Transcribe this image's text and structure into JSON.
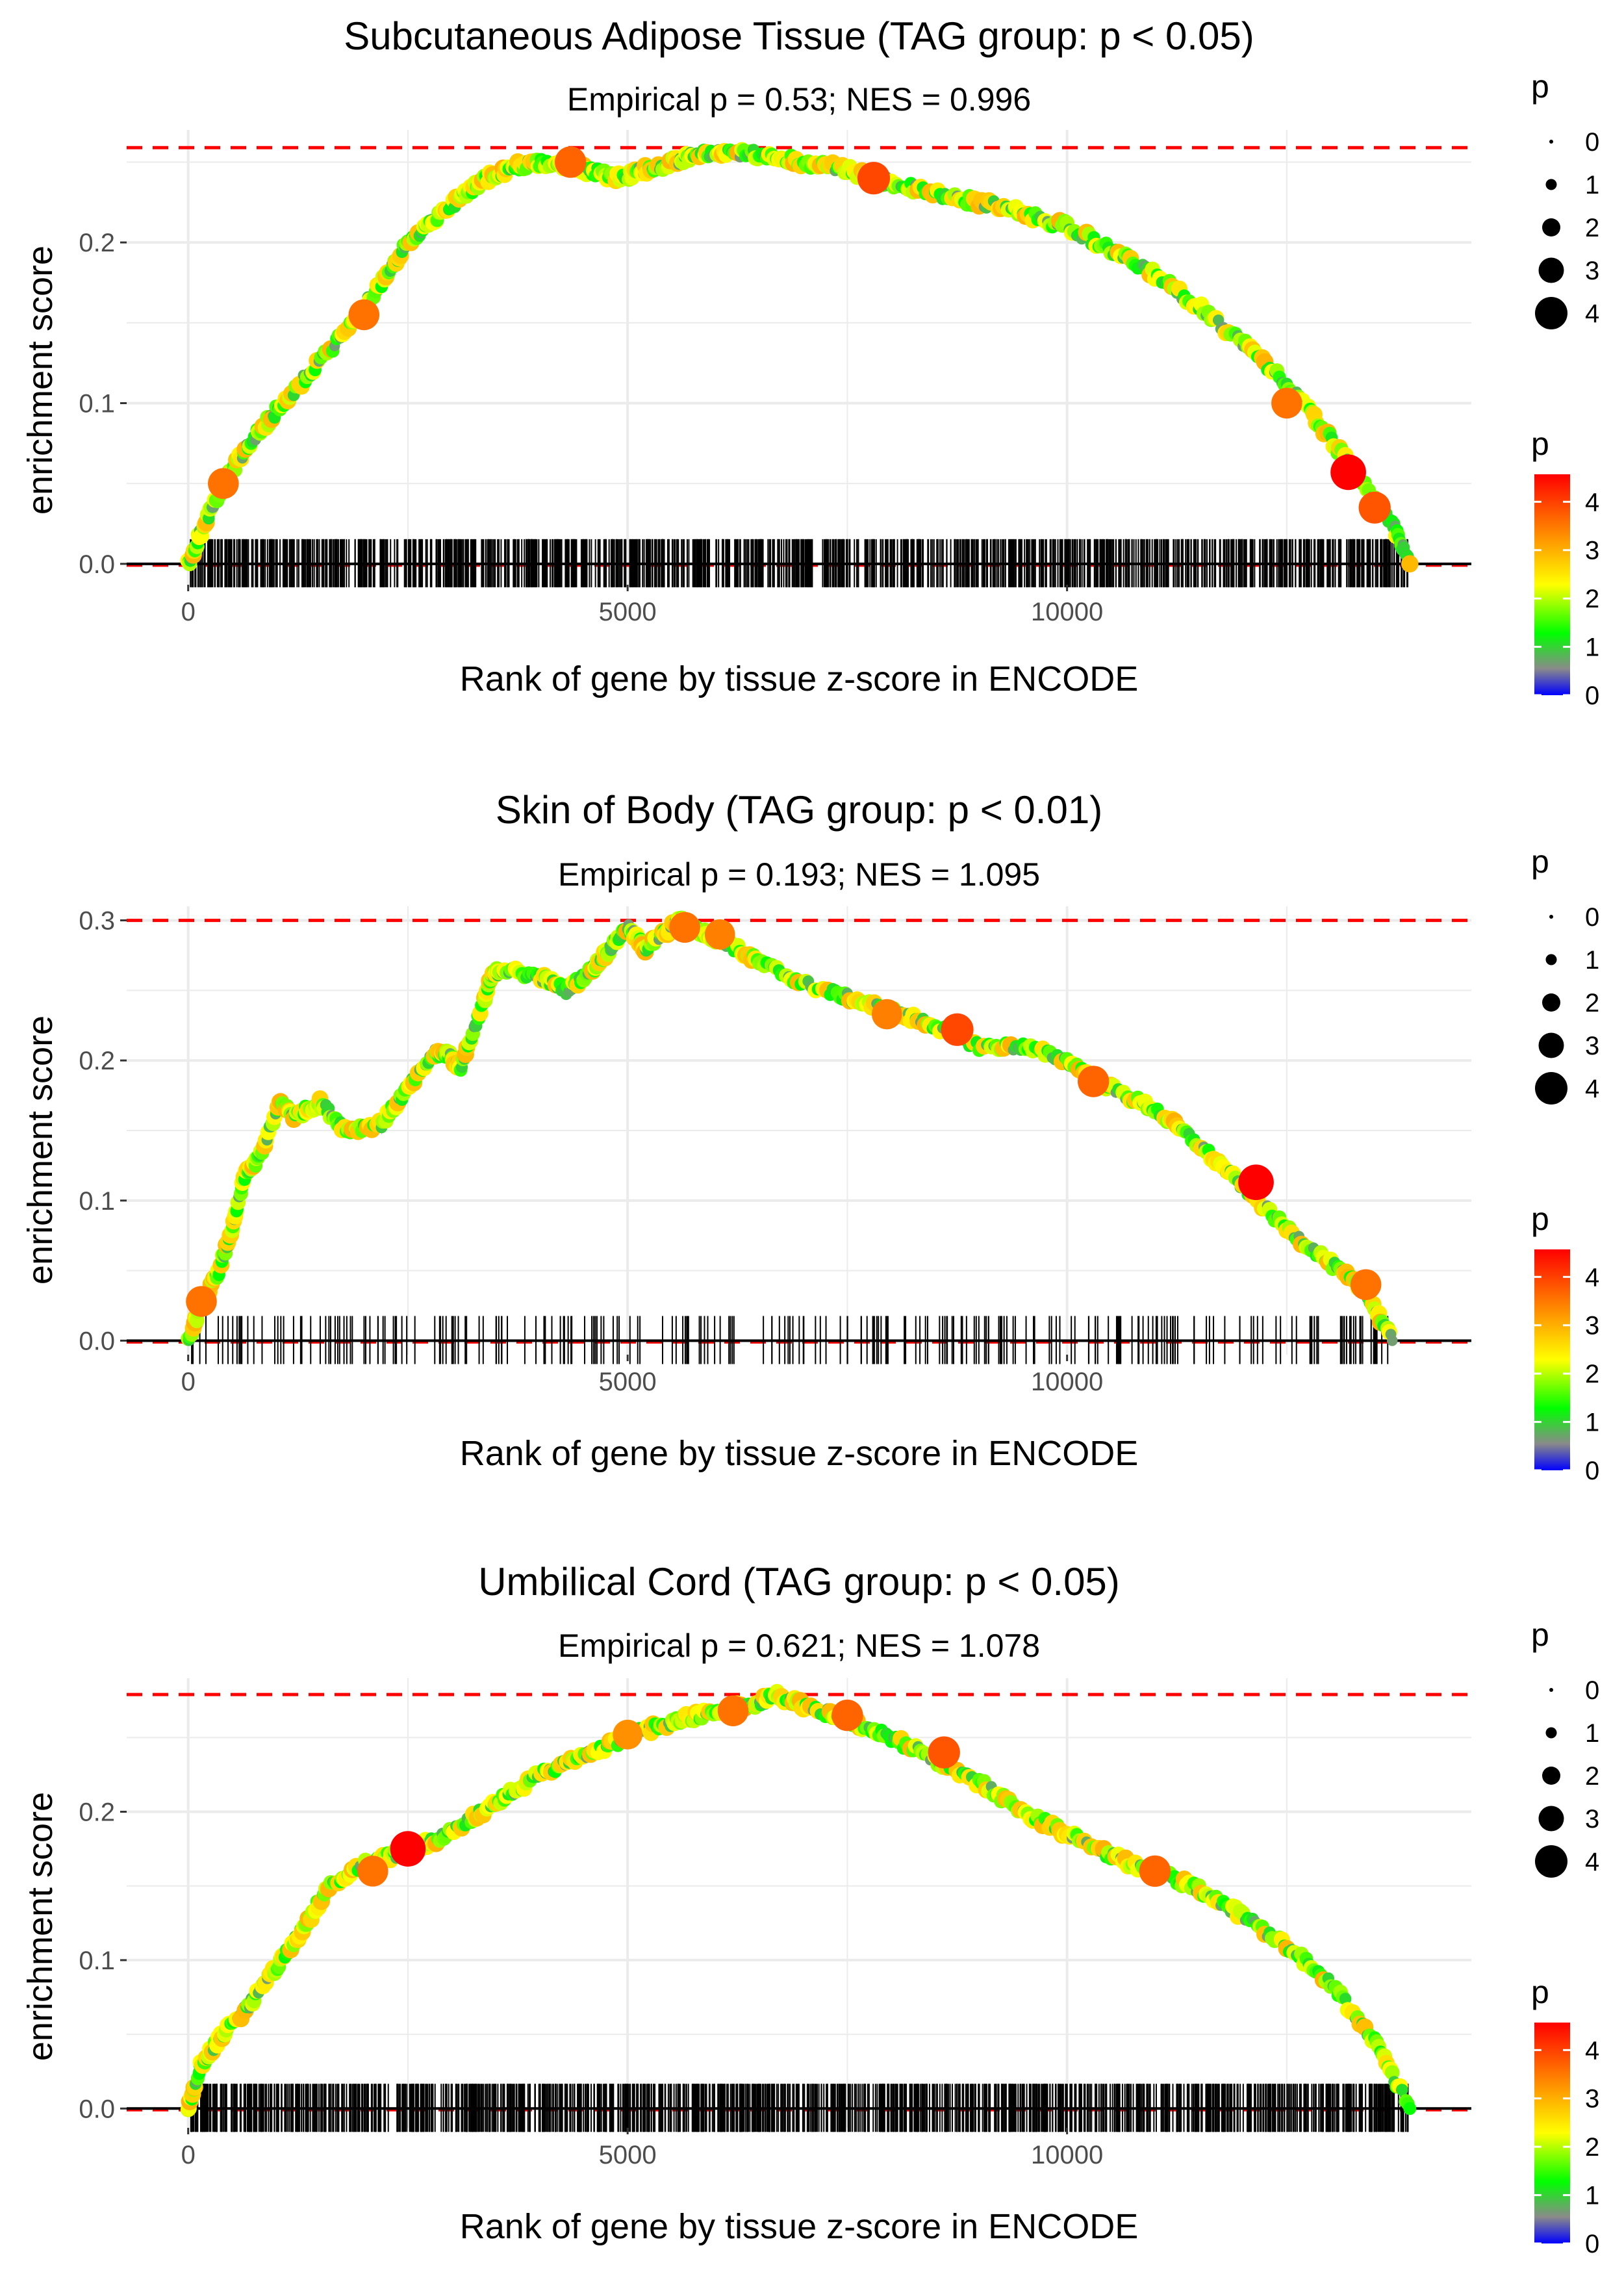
{
  "chart_data": [
    {
      "type": "line",
      "title": "Subcutaneous Adipose Tissue (TAG group: p < 0.05)",
      "subtitle": "Empirical p = 0.53; NES = 0.996",
      "xlabel": "Rank of gene by tissue z-score in ENCODE",
      "ylabel": "enrichment score",
      "xlim": [
        -700,
        14600
      ],
      "ylim": [
        -0.013,
        0.27
      ],
      "x_ticks": [
        0,
        5000,
        10000
      ],
      "x_tick_labels": [
        "0",
        "5000",
        "10000"
      ],
      "y_ticks": [
        0.0,
        0.1,
        0.2
      ],
      "y_tick_labels": [
        "0.0",
        "0.1",
        "0.2"
      ],
      "max_es": 0.259,
      "n_hits": 1200,
      "x": [
        0,
        150,
        400,
        700,
        1000,
        1400,
        1800,
        2200,
        2500,
        2800,
        3100,
        3400,
        3700,
        4000,
        4300,
        4600,
        4900,
        5200,
        5500,
        5800,
        6100,
        6500,
        7000,
        7500,
        8000,
        8500,
        9000,
        9500,
        10000,
        10500,
        11000,
        11500,
        12000,
        12500,
        12900,
        13300,
        13700,
        13900
      ],
      "y": [
        0,
        0.02,
        0.05,
        0.075,
        0.095,
        0.12,
        0.145,
        0.175,
        0.2,
        0.215,
        0.228,
        0.24,
        0.247,
        0.25,
        0.248,
        0.244,
        0.24,
        0.245,
        0.25,
        0.255,
        0.255,
        0.255,
        0.25,
        0.245,
        0.237,
        0.23,
        0.225,
        0.218,
        0.21,
        0.195,
        0.18,
        0.16,
        0.138,
        0.112,
        0.085,
        0.055,
        0.025,
        0
      ],
      "highlights": [
        {
          "x": 400,
          "y": 0.05,
          "p": 3.5
        },
        {
          "x": 2000,
          "y": 0.155,
          "p": 3.5
        },
        {
          "x": 4350,
          "y": 0.25,
          "p": 3.6
        },
        {
          "x": 7800,
          "y": 0.24,
          "p": 3.8
        },
        {
          "x": 12500,
          "y": 0.1,
          "p": 3.5
        },
        {
          "x": 13200,
          "y": 0.057,
          "p": 4.3
        },
        {
          "x": 13500,
          "y": 0.035,
          "p": 3.7
        }
      ]
    },
    {
      "type": "line",
      "title": "Skin of Body (TAG group: p < 0.01)",
      "subtitle": "Empirical p = 0.193; NES = 1.095",
      "xlabel": "Rank of gene by tissue z-score in ENCODE",
      "ylabel": "enrichment score",
      "xlim": [
        -700,
        14600
      ],
      "ylim": [
        -0.01,
        0.31
      ],
      "x_ticks": [
        0,
        5000,
        10000
      ],
      "x_tick_labels": [
        "0",
        "5000",
        "10000"
      ],
      "y_ticks": [
        0.0,
        0.1,
        0.2,
        0.3
      ],
      "y_tick_labels": [
        "0.0",
        "0.1",
        "0.2",
        "0.3"
      ],
      "max_es": 0.3,
      "n_hits": 260,
      "x": [
        0,
        150,
        350,
        500,
        650,
        800,
        1050,
        1200,
        1500,
        1800,
        2200,
        2500,
        2800,
        2950,
        3100,
        3350,
        3450,
        3550,
        4000,
        4300,
        4600,
        4800,
        5000,
        5200,
        5400,
        5600,
        5700,
        5900,
        6100,
        6500,
        7000,
        7500,
        8000,
        8500,
        9000,
        9500,
        10000,
        10500,
        11000,
        11500,
        12000,
        12500,
        13000,
        13400,
        13700
      ],
      "y": [
        0,
        0.025,
        0.05,
        0.08,
        0.12,
        0.13,
        0.17,
        0.16,
        0.17,
        0.15,
        0.155,
        0.18,
        0.205,
        0.205,
        0.195,
        0.24,
        0.26,
        0.265,
        0.26,
        0.25,
        0.265,
        0.28,
        0.295,
        0.28,
        0.29,
        0.3,
        0.295,
        0.29,
        0.285,
        0.27,
        0.255,
        0.245,
        0.235,
        0.225,
        0.21,
        0.21,
        0.2,
        0.18,
        0.165,
        0.14,
        0.11,
        0.08,
        0.055,
        0.035,
        0
      ],
      "highlights": [
        {
          "x": 150,
          "y": 0.028,
          "p": 3.5
        },
        {
          "x": 5650,
          "y": 0.295,
          "p": 3.5
        },
        {
          "x": 6050,
          "y": 0.29,
          "p": 3.4
        },
        {
          "x": 7950,
          "y": 0.233,
          "p": 3.4
        },
        {
          "x": 8750,
          "y": 0.222,
          "p": 3.8
        },
        {
          "x": 10300,
          "y": 0.185,
          "p": 3.6
        },
        {
          "x": 12150,
          "y": 0.113,
          "p": 4.3
        },
        {
          "x": 13400,
          "y": 0.04,
          "p": 3.5
        }
      ]
    },
    {
      "type": "line",
      "title": "Umbilical Cord (TAG group: p < 0.05)",
      "subtitle": "Empirical p = 0.621; NES = 1.078",
      "xlabel": "Rank of gene by tissue z-score in ENCODE",
      "ylabel": "enrichment score",
      "xlim": [
        -700,
        14600
      ],
      "ylim": [
        -0.013,
        0.29
      ],
      "x_ticks": [
        0,
        5000,
        10000
      ],
      "x_tick_labels": [
        "0",
        "5000",
        "10000"
      ],
      "y_ticks": [
        0.0,
        0.1,
        0.2
      ],
      "y_tick_labels": [
        "0.0",
        "0.1",
        "0.2"
      ],
      "max_es": 0.279,
      "n_hits": 1250,
      "x": [
        0,
        150,
        400,
        700,
        1000,
        1300,
        1600,
        2000,
        2300,
        2500,
        2800,
        3200,
        3600,
        4000,
        4400,
        4800,
        5200,
        5600,
        6000,
        6400,
        6700,
        7000,
        7500,
        8000,
        8500,
        9000,
        9500,
        10000,
        10500,
        11000,
        11500,
        12000,
        12500,
        13000,
        13500,
        13900
      ],
      "y": [
        0,
        0.03,
        0.05,
        0.07,
        0.095,
        0.12,
        0.15,
        0.165,
        0.17,
        0.175,
        0.18,
        0.195,
        0.21,
        0.225,
        0.235,
        0.245,
        0.255,
        0.262,
        0.268,
        0.272,
        0.278,
        0.272,
        0.262,
        0.25,
        0.235,
        0.22,
        0.2,
        0.185,
        0.17,
        0.16,
        0.148,
        0.13,
        0.11,
        0.085,
        0.045,
        0
      ],
      "highlights": [
        {
          "x": 2500,
          "y": 0.175,
          "p": 4.3
        },
        {
          "x": 2100,
          "y": 0.16,
          "p": 3.5
        },
        {
          "x": 5000,
          "y": 0.252,
          "p": 3.3
        },
        {
          "x": 6200,
          "y": 0.268,
          "p": 3.5
        },
        {
          "x": 7500,
          "y": 0.265,
          "p": 3.6
        },
        {
          "x": 8600,
          "y": 0.24,
          "p": 3.7
        },
        {
          "x": 11000,
          "y": 0.16,
          "p": 3.6
        }
      ]
    }
  ],
  "legend": {
    "size_title": "p",
    "size_labels": [
      "0",
      "1",
      "2",
      "3",
      "4"
    ],
    "color_title": "p",
    "color_labels": [
      "4",
      "3",
      "2",
      "1",
      "0"
    ],
    "colors": [
      "#ff0000",
      "#ff8000",
      "#ffff00",
      "#00ff00",
      "#8a8a8a",
      "#0000ff"
    ]
  },
  "colors": {
    "curve": "#b3b3b3",
    "max_line": "#ff0000",
    "grid": "#ebebeb",
    "rug": "#000000"
  }
}
